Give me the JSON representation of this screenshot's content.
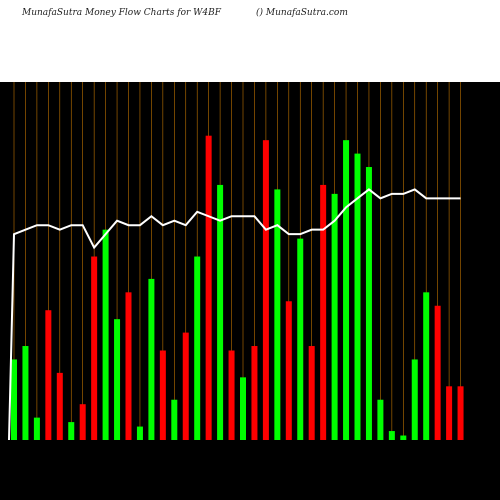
{
  "header": {
    "title": "MunafaSutra  Money Flow  Charts for W4BF",
    "site": "() MunafaSutra.com"
  },
  "colors": {
    "background": "#000000",
    "up": "#00ff00",
    "down": "#ff0000",
    "grid": "#ff9900",
    "line": "#ffffff"
  },
  "chart_data": {
    "type": "bar",
    "values": [
      {
        "v": 18,
        "c": "up"
      },
      {
        "v": 21,
        "c": "up"
      },
      {
        "v": 5,
        "c": "up"
      },
      {
        "v": 29,
        "c": "down"
      },
      {
        "v": 15,
        "c": "down"
      },
      {
        "v": 4,
        "c": "up"
      },
      {
        "v": 8,
        "c": "down"
      },
      {
        "v": 41,
        "c": "down"
      },
      {
        "v": 47,
        "c": "up"
      },
      {
        "v": 27,
        "c": "up"
      },
      {
        "v": 33,
        "c": "down"
      },
      {
        "v": 3,
        "c": "up"
      },
      {
        "v": 36,
        "c": "up"
      },
      {
        "v": 20,
        "c": "down"
      },
      {
        "v": 9,
        "c": "up"
      },
      {
        "v": 24,
        "c": "down"
      },
      {
        "v": 41,
        "c": "up"
      },
      {
        "v": 68,
        "c": "down"
      },
      {
        "v": 57,
        "c": "up"
      },
      {
        "v": 20,
        "c": "down"
      },
      {
        "v": 14,
        "c": "up"
      },
      {
        "v": 21,
        "c": "down"
      },
      {
        "v": 67,
        "c": "down"
      },
      {
        "v": 56,
        "c": "up"
      },
      {
        "v": 31,
        "c": "down"
      },
      {
        "v": 45,
        "c": "up"
      },
      {
        "v": 21,
        "c": "down"
      },
      {
        "v": 57,
        "c": "down"
      },
      {
        "v": 55,
        "c": "up"
      },
      {
        "v": 67,
        "c": "up"
      },
      {
        "v": 64,
        "c": "up"
      },
      {
        "v": 61,
        "c": "up"
      },
      {
        "v": 9,
        "c": "up"
      },
      {
        "v": 2,
        "c": "up"
      },
      {
        "v": 1,
        "c": "up"
      },
      {
        "v": 18,
        "c": "up"
      },
      {
        "v": 33,
        "c": "up"
      },
      {
        "v": 30,
        "c": "down"
      },
      {
        "v": 12,
        "c": "down"
      },
      {
        "v": 12,
        "c": "down"
      }
    ],
    "line": [
      46,
      47,
      48,
      48,
      47,
      48,
      48,
      43,
      46,
      49,
      48,
      48,
      50,
      48,
      49,
      48,
      51,
      50,
      49,
      50,
      50,
      50,
      47,
      48,
      46,
      46,
      47,
      47,
      49,
      52,
      54,
      56,
      54,
      55,
      55,
      56,
      54,
      54,
      54,
      54
    ],
    "ylim": [
      0,
      80
    ]
  }
}
